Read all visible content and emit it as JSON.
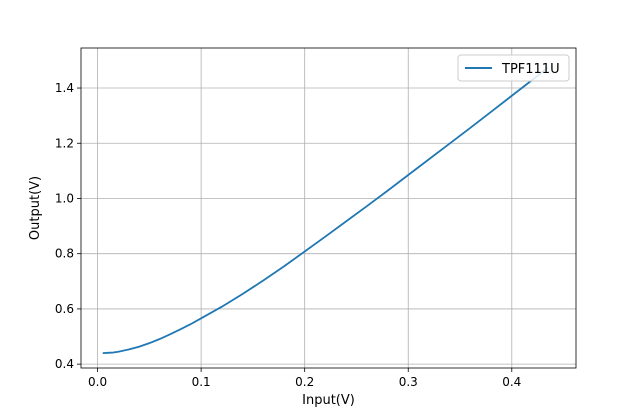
{
  "chart_data": {
    "type": "line",
    "title": "",
    "xlabel": "Input(V)",
    "ylabel": "Output(V)",
    "xlim": [
      -0.016,
      0.462
    ],
    "ylim": [
      0.386,
      1.545
    ],
    "xticks": [
      0.0,
      0.1,
      0.2,
      0.3,
      0.4
    ],
    "xtick_labels": [
      "0.0",
      "0.1",
      "0.2",
      "0.3",
      "0.4"
    ],
    "yticks": [
      0.4,
      0.6,
      0.8,
      1.0,
      1.2,
      1.4
    ],
    "ytick_labels": [
      "0.4",
      "0.6",
      "0.8",
      "1.0",
      "1.2",
      "1.4"
    ],
    "grid": true,
    "legend_position": "top-right",
    "colors": {
      "series": "#1f77b4",
      "grid": "#b0b0b0",
      "axes": "#000000"
    },
    "series": [
      {
        "name": "TPF111U",
        "x": [
          0.005,
          0.01,
          0.015,
          0.02,
          0.03,
          0.04,
          0.05,
          0.06,
          0.07,
          0.08,
          0.09,
          0.1,
          0.12,
          0.14,
          0.16,
          0.18,
          0.2,
          0.22,
          0.24,
          0.26,
          0.28,
          0.3,
          0.32,
          0.34,
          0.36,
          0.38,
          0.4,
          0.42,
          0.435
        ],
        "y": [
          0.44,
          0.441,
          0.442,
          0.445,
          0.453,
          0.463,
          0.476,
          0.491,
          0.508,
          0.526,
          0.545,
          0.566,
          0.608,
          0.654,
          0.703,
          0.754,
          0.808,
          0.862,
          0.917,
          0.972,
          1.028,
          1.085,
          1.142,
          1.199,
          1.256,
          1.314,
          1.372,
          1.43,
          1.475
        ]
      }
    ]
  }
}
